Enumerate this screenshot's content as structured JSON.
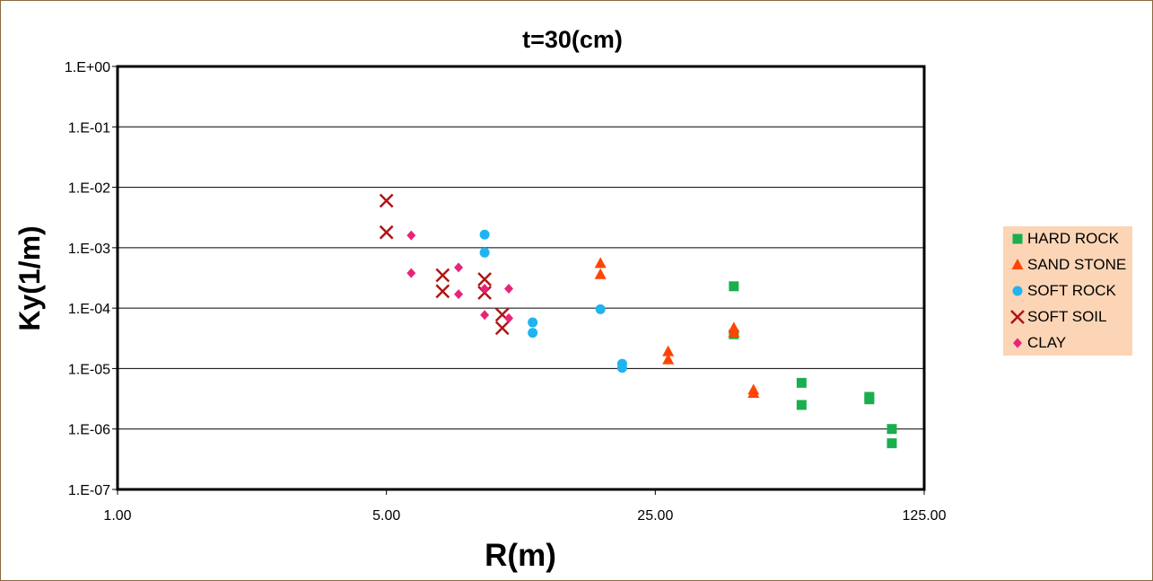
{
  "chart_data": {
    "type": "scatter",
    "title": "t=30(cm)",
    "xlabel": "R(m)",
    "ylabel": "Ky(1/m)",
    "x_scale": "log",
    "y_scale": "log",
    "xlim": [
      1,
      125
    ],
    "ylim": [
      1e-07,
      1
    ],
    "x_ticks": [
      {
        "value": 1,
        "label": "1.00"
      },
      {
        "value": 5,
        "label": "5.00"
      },
      {
        "value": 25,
        "label": "25.00"
      },
      {
        "value": 125,
        "label": "125.00"
      }
    ],
    "y_ticks": [
      {
        "value": 1,
        "label": "1.E+00"
      },
      {
        "value": 0.1,
        "label": "1.E-01"
      },
      {
        "value": 0.01,
        "label": "1.E-02"
      },
      {
        "value": 0.001,
        "label": "1.E-03"
      },
      {
        "value": 0.0001,
        "label": "1.E-04"
      },
      {
        "value": 1e-05,
        "label": "1.E-05"
      },
      {
        "value": 1e-06,
        "label": "1.E-06"
      },
      {
        "value": 1e-07,
        "label": "1.E-07"
      }
    ],
    "grid": "horizontal",
    "legend_position": "right",
    "series": [
      {
        "name": "HARD ROCK",
        "marker": "square",
        "color": "#1aae4e",
        "points": [
          {
            "x": 40,
            "y": 0.00023
          },
          {
            "x": 40,
            "y": 3.7e-05
          },
          {
            "x": 60,
            "y": 5.8e-06
          },
          {
            "x": 60,
            "y": 2.5e-06
          },
          {
            "x": 90,
            "y": 3.4e-06
          },
          {
            "x": 90,
            "y": 3.1e-06
          },
          {
            "x": 103,
            "y": 1e-06
          },
          {
            "x": 103,
            "y": 5.8e-07
          }
        ]
      },
      {
        "name": "SAND STONE",
        "marker": "triangle",
        "color": "#ff4500",
        "points": [
          {
            "x": 18,
            "y": 0.00055
          },
          {
            "x": 18,
            "y": 0.00036
          },
          {
            "x": 27,
            "y": 1.9e-05
          },
          {
            "x": 27,
            "y": 1.4e-05
          },
          {
            "x": 40,
            "y": 4.7e-05
          },
          {
            "x": 40,
            "y": 3.9e-05
          },
          {
            "x": 45,
            "y": 4.4e-06
          },
          {
            "x": 45,
            "y": 3.9e-06
          }
        ]
      },
      {
        "name": "SOFT ROCK",
        "marker": "circle",
        "color": "#1fb4f0",
        "points": [
          {
            "x": 9,
            "y": 0.00165
          },
          {
            "x": 9,
            "y": 0.00083
          },
          {
            "x": 12,
            "y": 5.8e-05
          },
          {
            "x": 12,
            "y": 3.9e-05
          },
          {
            "x": 18,
            "y": 9.6e-05
          },
          {
            "x": 20.5,
            "y": 1.2e-05
          },
          {
            "x": 20.5,
            "y": 1.03e-05
          }
        ]
      },
      {
        "name": "SOFT SOIL",
        "marker": "x",
        "color": "#b01515",
        "points": [
          {
            "x": 5,
            "y": 0.006
          },
          {
            "x": 5,
            "y": 0.0018
          },
          {
            "x": 7,
            "y": 0.00035
          },
          {
            "x": 7,
            "y": 0.00019
          },
          {
            "x": 9,
            "y": 0.0003
          },
          {
            "x": 9,
            "y": 0.00018
          },
          {
            "x": 10,
            "y": 7.8e-05
          },
          {
            "x": 10,
            "y": 4.7e-05
          }
        ]
      },
      {
        "name": "CLAY",
        "marker": "diamond",
        "color": "#e8247a",
        "points": [
          {
            "x": 5.8,
            "y": 0.0016
          },
          {
            "x": 5.8,
            "y": 0.00038
          },
          {
            "x": 7.7,
            "y": 0.00047
          },
          {
            "x": 7.7,
            "y": 0.00017
          },
          {
            "x": 9,
            "y": 0.00021
          },
          {
            "x": 9,
            "y": 7.7e-05
          },
          {
            "x": 10.4,
            "y": 0.00021
          },
          {
            "x": 10.4,
            "y": 6.8e-05
          }
        ]
      }
    ]
  }
}
